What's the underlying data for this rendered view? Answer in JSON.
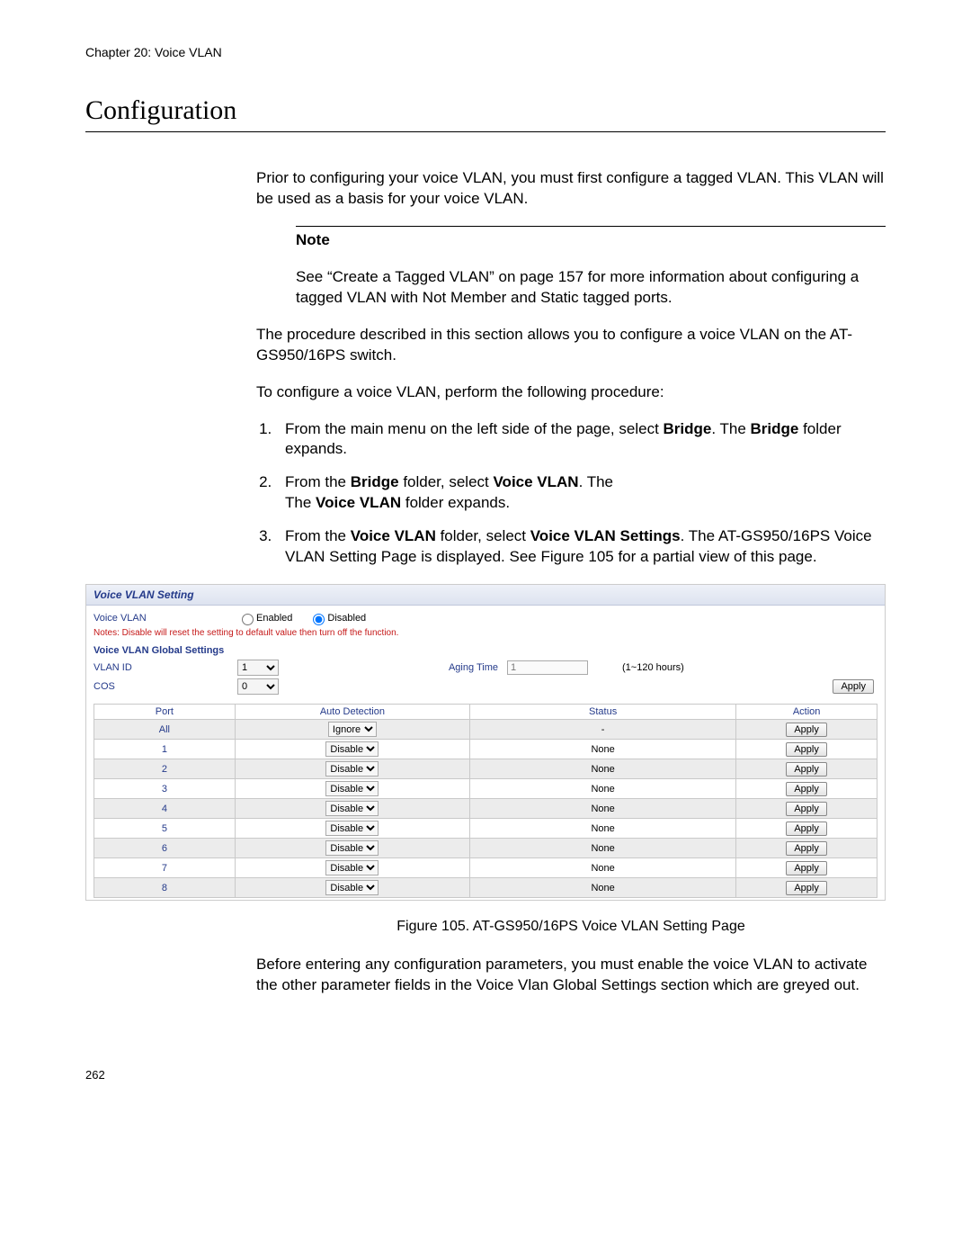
{
  "chapter": "Chapter 20: Voice VLAN",
  "section_title": "Configuration",
  "intro": "Prior to configuring your voice VLAN, you must first configure a tagged VLAN. This VLAN will be used as a basis for your voice VLAN.",
  "note": {
    "label": "Note",
    "text": "See “Create a Tagged VLAN” on page 157 for more information about configuring a tagged VLAN with Not Member and Static tagged ports."
  },
  "para2": "The procedure described in this section allows you to configure a voice VLAN on the AT-GS950/16PS switch.",
  "para3": "To configure a voice VLAN, perform the following procedure:",
  "steps": {
    "s1a": "From the main menu on the left side of the page, select ",
    "s1b": "Bridge",
    "s1c": ". The ",
    "s1d": "Bridge",
    "s1e": " folder expands.",
    "s2a": "From the ",
    "s2b": "Bridge",
    "s2c": " folder, select ",
    "s2d": "Voice VLAN",
    "s2e": ". The ",
    "s2f": "Voice VLAN",
    "s2g": " folder expands.",
    "s3a": "From the ",
    "s3b": "Voice VLAN",
    "s3c": " folder, select ",
    "s3d": "Voice VLAN Settings",
    "s3e": ". The AT-GS950/16PS Voice VLAN Setting Page is displayed. See Figure 105 for a partial view of this page."
  },
  "screenshot": {
    "title": "Voice VLAN Setting",
    "voice_vlan_label": "Voice VLAN",
    "enabled_label": "Enabled",
    "disabled_label": "Disabled",
    "warn": "Notes: Disable will reset the setting to default value then turn off the function.",
    "global_header": "Voice VLAN Global Settings",
    "vlan_id_label": "VLAN ID",
    "vlan_id_value": "1",
    "aging_label": "Aging Time",
    "aging_value": "1",
    "aging_hint": "(1~120 hours)",
    "cos_label": "COS",
    "cos_value": "0",
    "apply_label": "Apply",
    "table": {
      "headers": [
        "Port",
        "Auto Detection",
        "Status",
        "Action"
      ],
      "rows": [
        {
          "port": "All",
          "auto": "Ignore",
          "status": "-",
          "grey": true
        },
        {
          "port": "1",
          "auto": "Disable",
          "status": "None",
          "grey": false
        },
        {
          "port": "2",
          "auto": "Disable",
          "status": "None",
          "grey": true
        },
        {
          "port": "3",
          "auto": "Disable",
          "status": "None",
          "grey": false
        },
        {
          "port": "4",
          "auto": "Disable",
          "status": "None",
          "grey": true
        },
        {
          "port": "5",
          "auto": "Disable",
          "status": "None",
          "grey": false
        },
        {
          "port": "6",
          "auto": "Disable",
          "status": "None",
          "grey": true
        },
        {
          "port": "7",
          "auto": "Disable",
          "status": "None",
          "grey": false
        },
        {
          "port": "8",
          "auto": "Disable",
          "status": "None",
          "grey": true
        }
      ]
    }
  },
  "figure_caption": "Figure 105. AT-GS950/16PS Voice VLAN Setting Page",
  "para4": "Before entering any configuration parameters, you must enable the voice VLAN to activate the other parameter fields in the Voice Vlan Global Settings section which are greyed out.",
  "page_number": "262",
  "colors": {
    "link_blue": "#243a8a",
    "warn_red": "#c51818",
    "row_grey": "#ececec",
    "border_grey": "#c9c9c9"
  }
}
